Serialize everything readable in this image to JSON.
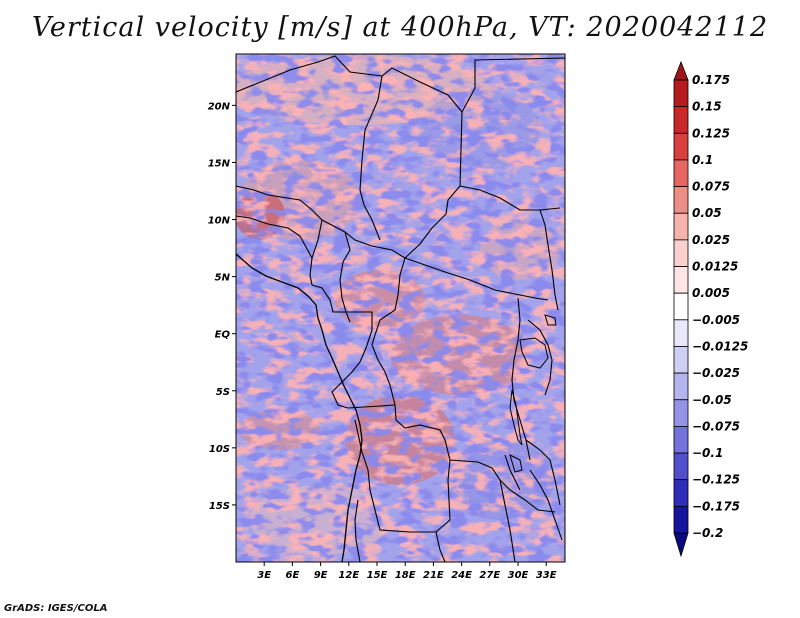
{
  "title": "Vertical velocity [m/s] at 400hPa, VT: 2020042112",
  "credit": "GrADS: IGES/COLA",
  "map": {
    "lat_labels": [
      "20N",
      "15N",
      "10N",
      "5N",
      "EQ",
      "5S",
      "10S",
      "15S"
    ],
    "lat_values": [
      20,
      15,
      10,
      5,
      0,
      -5,
      -10,
      -15
    ],
    "lon_labels": [
      "3E",
      "6E",
      "9E",
      "12E",
      "15E",
      "18E",
      "21E",
      "24E",
      "27E",
      "30E",
      "33E"
    ],
    "lon_values": [
      3,
      6,
      9,
      12,
      15,
      18,
      21,
      24,
      27,
      30,
      33
    ],
    "lon_range": [
      0,
      35
    ],
    "lat_range": [
      -20,
      24.5
    ]
  },
  "colorbar": {
    "labels": [
      "0.175",
      "0.15",
      "0.125",
      "0.1",
      "0.075",
      "0.05",
      "0.025",
      "0.0125",
      "0.005",
      "−0.005",
      "−0.0125",
      "−0.025",
      "−0.05",
      "−0.075",
      "−0.1",
      "−0.125",
      "−0.175",
      "−0.2"
    ],
    "colors": [
      "#a01418",
      "#b41c20",
      "#c8282c",
      "#d8403e",
      "#e66660",
      "#ef8e86",
      "#f5b3ab",
      "#f9d0cb",
      "#fde6e4",
      "#ffffff",
      "#e8e8fa",
      "#cfcff4",
      "#b4b4ee",
      "#9494e6",
      "#7373dc",
      "#5050cc",
      "#2e2eb8",
      "#15159e",
      "#0a0a80"
    ]
  }
}
